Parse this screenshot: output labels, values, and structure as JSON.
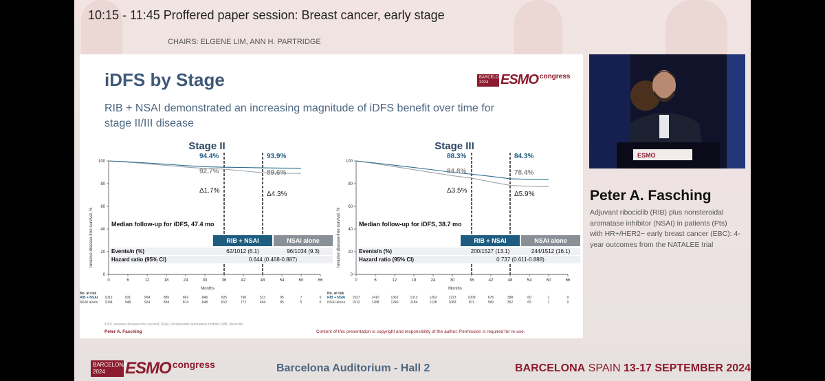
{
  "session": {
    "title": "10:15 - 11:45  Proffered paper session: Breast cancer, early stage",
    "chairs": "CHAIRS: ELGENE LIM, ANN H. PARTRIDGE"
  },
  "slide": {
    "title": "iDFS by Stage",
    "logo": {
      "line1": "BARCELONA",
      "line2": "2024",
      "word": "ESMO",
      "congress": "congress"
    },
    "subtitle": "RIB + NSAI demonstrated an increasing magnitude of iDFS benefit over time for stage II/III disease",
    "footnote": "iDFS, invasive disease-free survival; NSAI, nonsteroidal aromatase inhibitor; RIB, ribociclib.",
    "presenter": "Peter A. Fasching",
    "copyright": "Content of this presentation is copyright and responsibility of the author. Permission is required for re-use."
  },
  "chart_data": [
    {
      "type": "line",
      "title": "Stage II",
      "xlabel": "Months",
      "ylabel": "Invasive disease-free survival, %",
      "x_ticks": [
        0,
        6,
        12,
        18,
        24,
        30,
        36,
        42,
        48,
        54,
        60,
        66
      ],
      "y_ticks": [
        0,
        20,
        40,
        60,
        80,
        100
      ],
      "xlim": [
        0,
        66
      ],
      "ylim": [
        0,
        100
      ],
      "series": [
        {
          "name": "RIB + NSAI",
          "color": "#2e6f8f",
          "x": [
            0,
            6,
            12,
            18,
            24,
            30,
            36,
            42,
            48,
            54,
            60
          ],
          "y": [
            100,
            99.2,
            98.2,
            97.1,
            95.9,
            94.9,
            94.4,
            94.2,
            93.9,
            93.7,
            93.6
          ]
        },
        {
          "name": "NSAI alone",
          "color": "#9aa3ad",
          "x": [
            0,
            6,
            12,
            18,
            24,
            30,
            36,
            42,
            48,
            54,
            60
          ],
          "y": [
            100,
            98.9,
            97.5,
            96.0,
            94.6,
            93.4,
            92.7,
            91.2,
            89.6,
            89.1,
            89.0
          ]
        }
      ],
      "annotations": {
        "rib36": "94.4%",
        "nsai36": "92.7%",
        "delta36": "Δ1.7%",
        "rib48": "93.9%",
        "nsai48": "89.6%",
        "delta48": "Δ4.3%"
      },
      "followup": "Median follow-up for iDFS, 47.4 mo",
      "table": {
        "headers": [
          "RIB + NSAI",
          "NSAI alone"
        ],
        "rows": [
          {
            "label": "Events/n (%)",
            "values": [
              "62/1012 (6.1)",
              "96/1034 (9.3)"
            ]
          },
          {
            "label": "Hazard ratio (95% CI)",
            "values": [
              "0.644 (0.468-0.887)"
            ]
          }
        ]
      },
      "risk": {
        "header": "No. at risk",
        "rows": [
          {
            "label": "RIB + NSAI",
            "values": [
              "1012",
              "931",
              "904",
              "885",
              "862",
              "846",
              "825",
              "796",
              "513",
              "95",
              "7",
              "0"
            ]
          },
          {
            "label": "NSAI alone",
            "values": [
              "1034",
              "948",
              "924",
              "894",
              "874",
              "848",
              "812",
              "772",
              "494",
              "85",
              "5",
              "0"
            ]
          }
        ]
      }
    },
    {
      "type": "line",
      "title": "Stage III",
      "xlabel": "Months",
      "ylabel": "Invasive disease-free survival, %",
      "x_ticks": [
        0,
        6,
        12,
        18,
        24,
        30,
        36,
        42,
        48,
        54,
        60,
        66
      ],
      "y_ticks": [
        0,
        20,
        40,
        60,
        80,
        100
      ],
      "xlim": [
        0,
        66
      ],
      "ylim": [
        0,
        100
      ],
      "series": [
        {
          "name": "RIB + NSAI",
          "color": "#2e6f8f",
          "x": [
            0,
            6,
            12,
            18,
            24,
            30,
            36,
            42,
            48,
            54,
            60
          ],
          "y": [
            100,
            98.2,
            96.2,
            94.2,
            92.1,
            90.0,
            88.3,
            86.4,
            84.3,
            83.8,
            83.6
          ]
        },
        {
          "name": "NSAI alone",
          "color": "#9aa3ad",
          "x": [
            0,
            6,
            12,
            18,
            24,
            30,
            36,
            42,
            48,
            54,
            60
          ],
          "y": [
            100,
            97.6,
            95.0,
            92.3,
            89.6,
            87.0,
            84.8,
            81.6,
            78.4,
            77.6,
            77.4
          ]
        }
      ],
      "annotations": {
        "rib36": "88.3%",
        "nsai36": "84.8%",
        "delta36": "Δ3.5%",
        "rib48": "84.3%",
        "nsai48": "78.4%",
        "delta48": "Δ5.9%"
      },
      "followup": "Median follow-up for iDFS, 38.7 mo",
      "table": {
        "headers": [
          "RIB + NSAI",
          "NSAI alone"
        ],
        "rows": [
          {
            "label": "Events/n (%)",
            "values": [
              "200/1527 (13.1)",
              "244/1512 (16.1)"
            ]
          },
          {
            "label": "Hazard ratio (95% CI)",
            "values": [
              "0.737 (0.611-0.888)"
            ]
          }
        ]
      },
      "risk": {
        "header": "No. at risk",
        "rows": [
          {
            "label": "RIB + NSAI",
            "values": [
              "1527",
              "1410",
              "1362",
              "1313",
              "1262",
              "1223",
              "1009",
              "676",
              "398",
              "60",
              "1",
              "0"
            ]
          },
          {
            "label": "NSAI alone",
            "values": [
              "1512",
              "1288",
              "1240",
              "1184",
              "1128",
              "1083",
              "871",
              "590",
              "352",
              "65",
              "1",
              "0"
            ]
          }
        ]
      }
    }
  ],
  "speaker": {
    "name": "Peter A. Fasching",
    "description": "Adjuvant ribociclib (RIB) plus nonsteroidal aromatase inhibitor (NSAI) in patients (Pts) with HR+/HER2− early breast cancer (EBC): 4-year outcomes from the NATALEE trial"
  },
  "footer": {
    "logo": {
      "line1": "BARCELONA",
      "line2": "2024",
      "word": "ESMO",
      "congress": "congress"
    },
    "venue": "Barcelona Auditorium - Hall 2",
    "city_bold": "BARCELONA",
    "country": "SPAIN",
    "dates": "13-17 SEPTEMBER 2024"
  },
  "colors": {
    "brand": "#8b1b2e",
    "rib": "#2e6f8f",
    "nsai": "#9aa3ad",
    "title_blue": "#3f5a78"
  }
}
